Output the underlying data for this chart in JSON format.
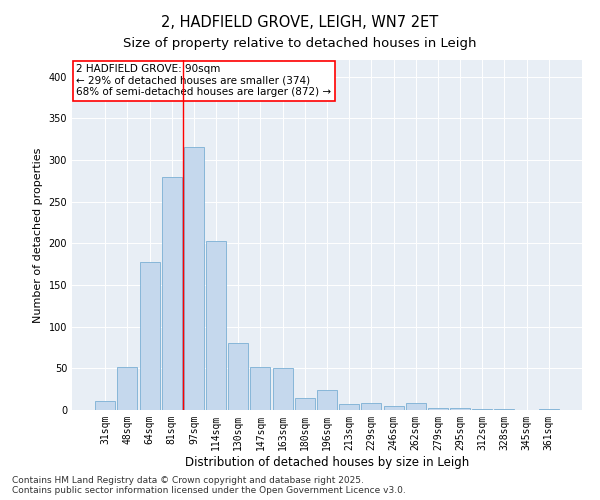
{
  "title": "2, HADFIELD GROVE, LEIGH, WN7 2ET",
  "subtitle": "Size of property relative to detached houses in Leigh",
  "xlabel": "Distribution of detached houses by size in Leigh",
  "ylabel": "Number of detached properties",
  "categories": [
    "31sqm",
    "48sqm",
    "64sqm",
    "81sqm",
    "97sqm",
    "114sqm",
    "130sqm",
    "147sqm",
    "163sqm",
    "180sqm",
    "196sqm",
    "213sqm",
    "229sqm",
    "246sqm",
    "262sqm",
    "279sqm",
    "295sqm",
    "312sqm",
    "328sqm",
    "345sqm",
    "361sqm"
  ],
  "values": [
    11,
    52,
    178,
    280,
    316,
    203,
    80,
    52,
    50,
    15,
    24,
    7,
    8,
    5,
    8,
    2,
    3,
    1,
    1,
    0,
    1
  ],
  "bar_color": "#c5d8ed",
  "bar_edge_color": "#7aafd4",
  "vline_color": "red",
  "vline_x_index": 3.5,
  "annotation_text": "2 HADFIELD GROVE: 90sqm\n← 29% of detached houses are smaller (374)\n68% of semi-detached houses are larger (872) →",
  "annotation_box_color": "white",
  "annotation_box_edge": "red",
  "ylim": [
    0,
    420
  ],
  "yticks": [
    0,
    50,
    100,
    150,
    200,
    250,
    300,
    350,
    400
  ],
  "background_color": "#e8eef5",
  "footer": "Contains HM Land Registry data © Crown copyright and database right 2025.\nContains public sector information licensed under the Open Government Licence v3.0.",
  "title_fontsize": 10.5,
  "subtitle_fontsize": 9.5,
  "xlabel_fontsize": 8.5,
  "ylabel_fontsize": 8,
  "tick_fontsize": 7,
  "footer_fontsize": 6.5,
  "annotation_fontsize": 7.5
}
